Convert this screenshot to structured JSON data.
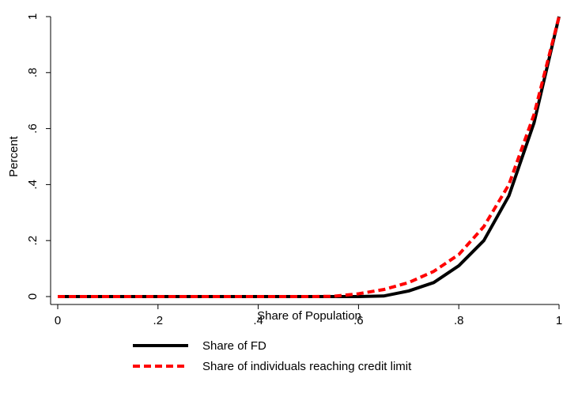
{
  "chart_data": {
    "type": "line",
    "title": "",
    "xlabel": "Share of Population",
    "ylabel": "Percent",
    "xlim": [
      0,
      1
    ],
    "ylim": [
      0,
      1
    ],
    "xticks": [
      0,
      0.2,
      0.4,
      0.6,
      0.8,
      1
    ],
    "xtick_labels": [
      "0",
      ".2",
      ".4",
      ".6",
      ".8",
      "1"
    ],
    "yticks": [
      0,
      0.2,
      0.4,
      0.6,
      0.8,
      1
    ],
    "ytick_labels": [
      "0",
      ".2",
      ".4",
      ".6",
      ".8",
      "1"
    ],
    "grid": false,
    "legend_position": "bottom",
    "series": [
      {
        "name": "Share of FD",
        "color": "#000000",
        "style": "solid",
        "x": [
          0,
          0.1,
          0.2,
          0.3,
          0.4,
          0.5,
          0.6,
          0.65,
          0.7,
          0.75,
          0.8,
          0.85,
          0.9,
          0.95,
          1.0
        ],
        "y": [
          0,
          0,
          0,
          0,
          0,
          0,
          0,
          0.002,
          0.02,
          0.05,
          0.11,
          0.2,
          0.36,
          0.62,
          1.0
        ]
      },
      {
        "name": "Share of individuals reaching credit limit",
        "color": "#ff0000",
        "style": "dashed",
        "x": [
          0,
          0.1,
          0.2,
          0.3,
          0.4,
          0.5,
          0.55,
          0.6,
          0.65,
          0.7,
          0.75,
          0.8,
          0.85,
          0.9,
          0.95,
          1.0
        ],
        "y": [
          0,
          0,
          0,
          0,
          0,
          0,
          0.001,
          0.01,
          0.025,
          0.05,
          0.09,
          0.15,
          0.25,
          0.4,
          0.65,
          1.0
        ]
      }
    ]
  }
}
